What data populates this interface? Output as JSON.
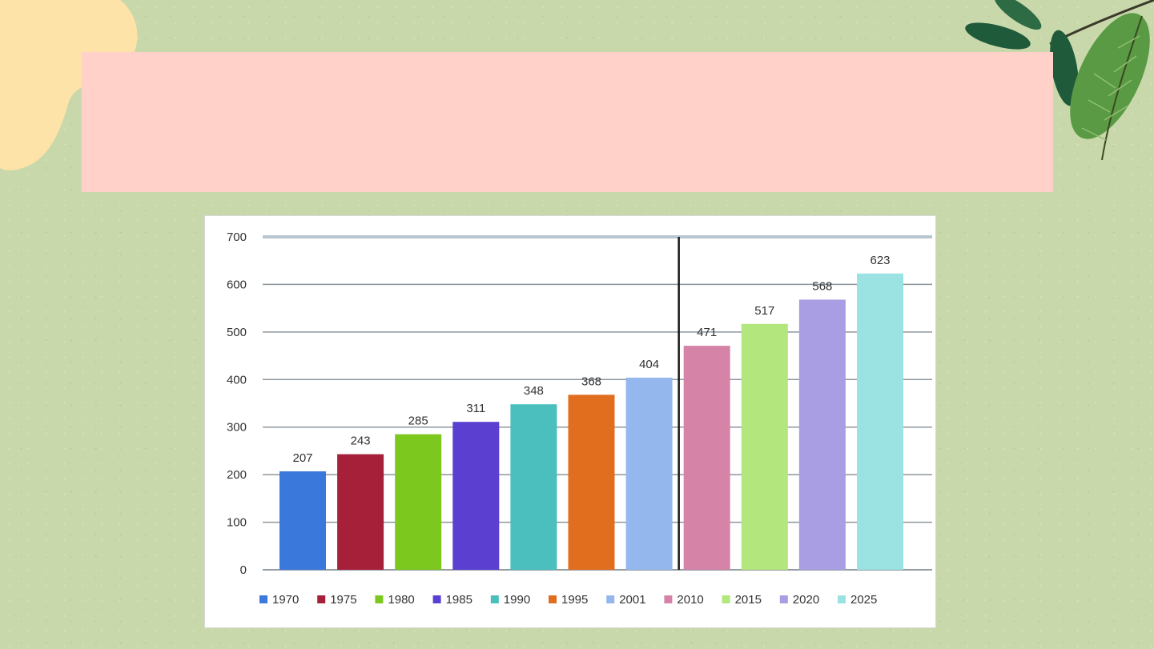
{
  "slide": {
    "title": "",
    "colors": {
      "background": "#c9d8ab",
      "banner": "#ffd1c9",
      "blob": "#fde3a7"
    },
    "decorations": [
      "blob-shape",
      "leaf-icon"
    ]
  },
  "chart_data": {
    "type": "bar",
    "title": "",
    "xlabel": "",
    "ylabel": "",
    "ylim": [
      0,
      700
    ],
    "yticks": [
      0,
      100,
      200,
      300,
      400,
      500,
      600,
      700
    ],
    "grid": true,
    "legend_position": "bottom",
    "divider_after": "2001",
    "categories": [
      "1970",
      "1975",
      "1980",
      "1985",
      "1990",
      "1995",
      "2001",
      "2010",
      "2015",
      "2020",
      "2025"
    ],
    "values": [
      207,
      243,
      285,
      311,
      348,
      368,
      404,
      471,
      517,
      568,
      623
    ],
    "colors": [
      "#3b78dc",
      "#a6203a",
      "#7dc81f",
      "#5b3fd0",
      "#4bbebe",
      "#e06e1e",
      "#94b7ee",
      "#d683a8",
      "#b3e67c",
      "#a99de3",
      "#9be3e2"
    ]
  }
}
